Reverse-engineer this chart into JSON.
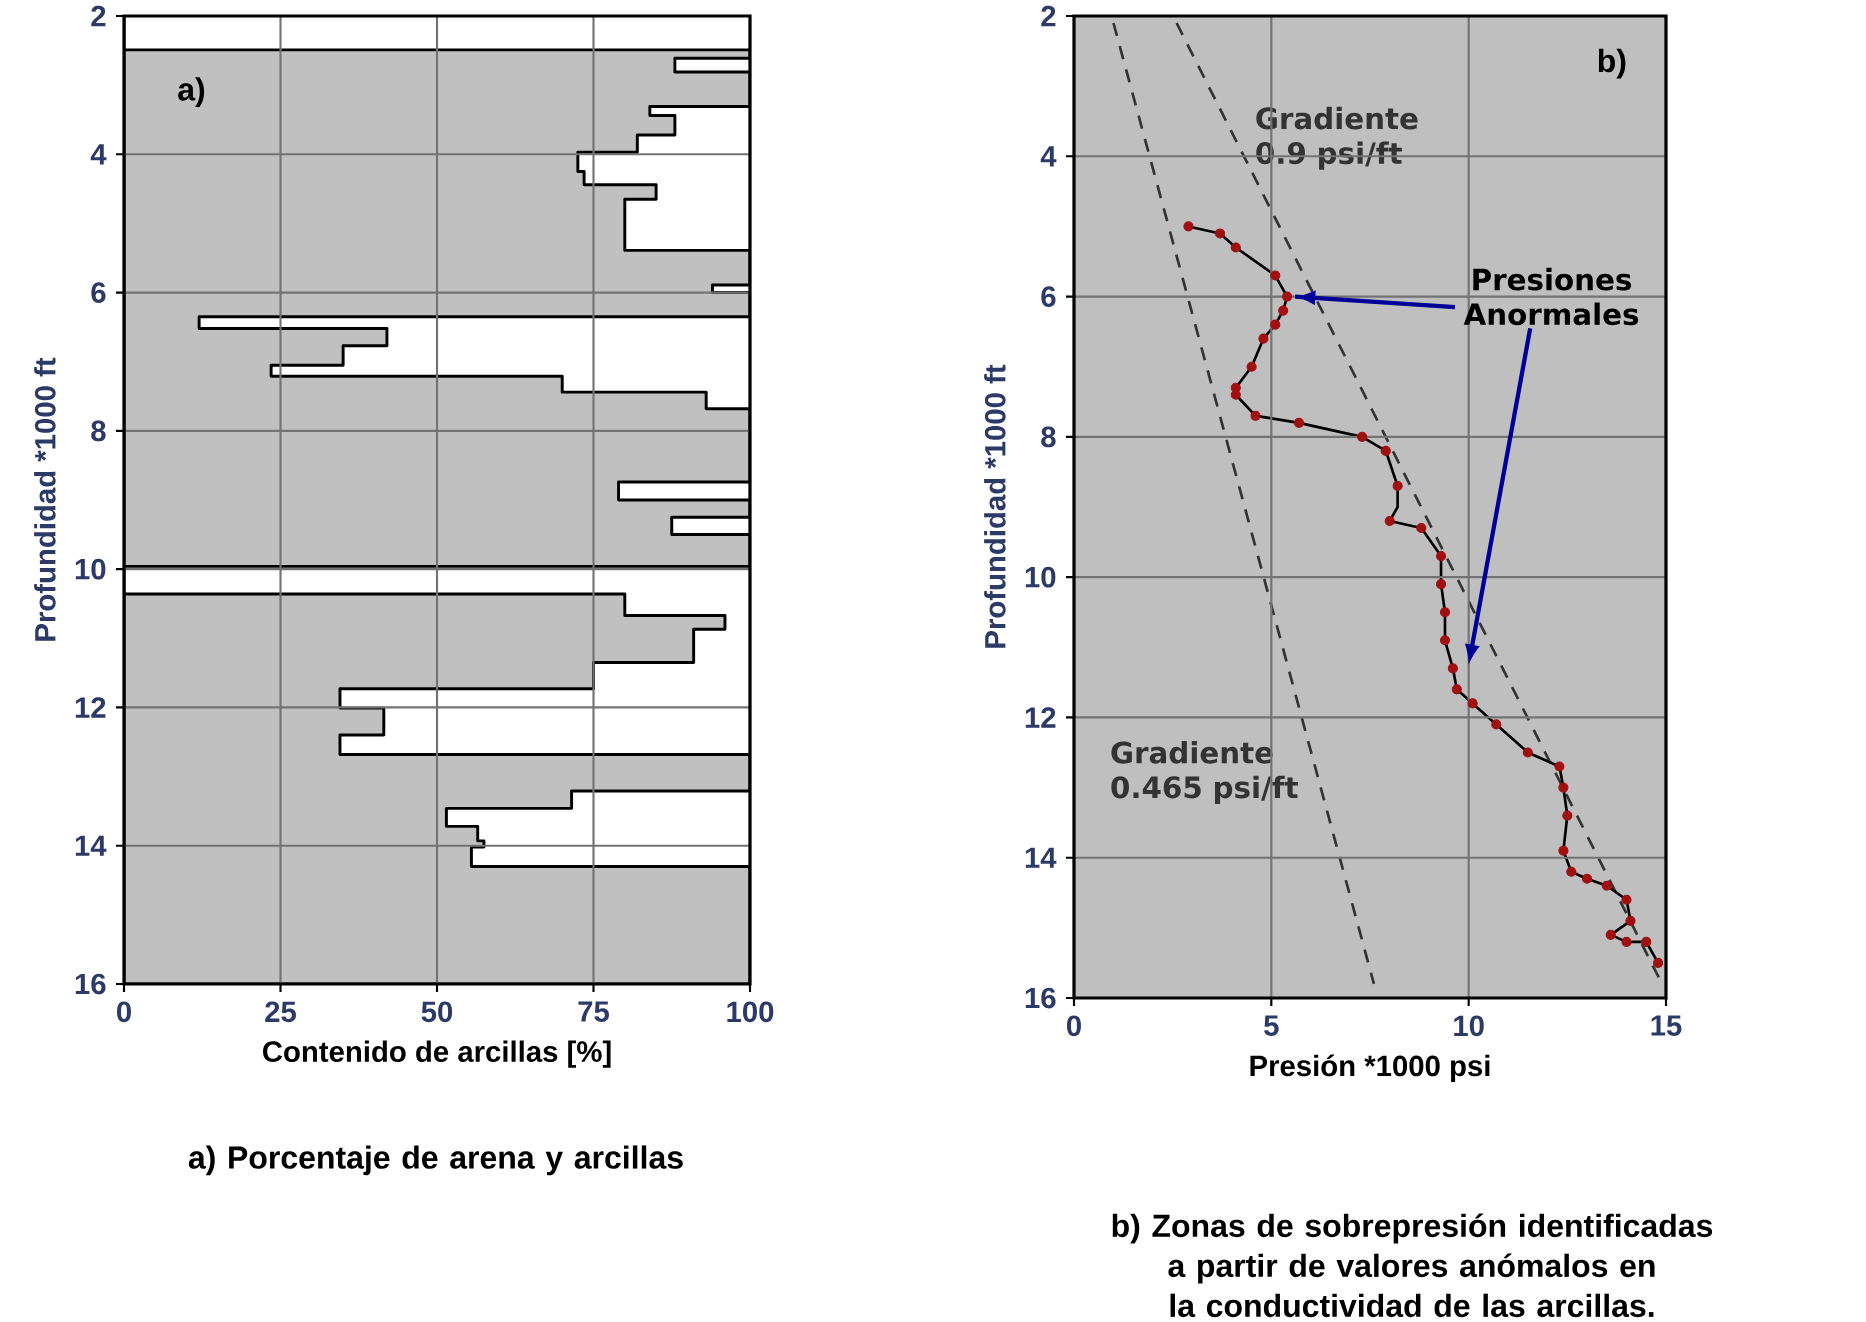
{
  "chart_data": [
    {
      "type": "area",
      "orientation": "horizontal",
      "title": "a)",
      "xlabel": "Contenido de arcillas [%]",
      "ylabel": "Profundidad *1000 ft",
      "xlim": [
        0,
        100
      ],
      "ylim": [
        16,
        2
      ],
      "xticks": [
        0,
        25,
        50,
        75,
        100
      ],
      "yticks": [
        2,
        4,
        6,
        8,
        10,
        12,
        14,
        16
      ],
      "grid": true,
      "series": [
        {
          "color": "#c0c0c0",
          "x": [
            2.0,
            2.49,
            2.49,
            2.61,
            2.61,
            2.81,
            2.81,
            3.31,
            3.31,
            3.44,
            3.44,
            3.72,
            3.72,
            3.97,
            3.97,
            4.25,
            4.25,
            4.44,
            4.44,
            4.65,
            4.65,
            5.39,
            5.39,
            5.89,
            5.89,
            6.0,
            6.0,
            6.35,
            6.35,
            6.52,
            6.52,
            6.77,
            6.77,
            7.05,
            7.05,
            7.21,
            7.21,
            7.44,
            7.44,
            7.68,
            7.68,
            8.74,
            8.74,
            9.0,
            9.0,
            9.25,
            9.25,
            9.5,
            9.5,
            9.96,
            9.96,
            10.36,
            10.36,
            10.67,
            10.67,
            10.87,
            10.87,
            11.35,
            11.35,
            11.73,
            11.73,
            12.01,
            12.01,
            12.4,
            12.4,
            12.68,
            12.68,
            13.21,
            13.21,
            13.46,
            13.46,
            13.72,
            13.72,
            13.93,
            13.93,
            14.02,
            14.02,
            14.3,
            14.3,
            16.0
          ],
          "values": [
            0,
            0,
            100,
            100,
            88,
            88,
            100,
            100,
            84,
            84,
            88,
            88,
            82,
            82,
            72.5,
            72.5,
            73.5,
            73.5,
            85,
            85,
            80,
            80,
            100,
            100,
            94,
            94,
            100,
            100,
            12,
            12,
            42,
            42,
            35,
            35,
            23.5,
            23.5,
            70,
            70,
            93,
            93,
            100,
            100,
            79,
            79,
            100,
            100,
            87.5,
            87.5,
            100,
            100,
            0,
            0,
            80,
            80,
            96,
            96,
            91,
            91,
            75,
            75,
            34.5,
            34.5,
            41.5,
            41.5,
            34.5,
            34.5,
            100,
            100,
            71.5,
            71.5,
            51.5,
            51.5,
            56.5,
            56.5,
            57.5,
            57.5,
            55.5,
            55.5,
            100,
            100
          ]
        }
      ],
      "annotations": [
        "a)  Porcentaje de arena y arcillas"
      ]
    },
    {
      "type": "line",
      "title": "b)",
      "xlabel": "Presión *1000 psi",
      "ylabel": "Profundidad *1000 ft",
      "xlim": [
        0,
        15
      ],
      "ylim": [
        16,
        2
      ],
      "xticks": [
        0,
        5,
        10,
        15
      ],
      "yticks": [
        2,
        4,
        6,
        8,
        10,
        12,
        14,
        16
      ],
      "grid": true,
      "series": [
        {
          "name": "Gradiente 0.9 psi/ft",
          "color": "#333333",
          "line_style": "dashed",
          "x": [
            2.6,
            14.9
          ],
          "values": [
            2.1,
            15.8
          ]
        },
        {
          "name": "Gradiente 0.465 psi/ft",
          "color": "#333333",
          "line_style": "dashed",
          "x": [
            1.0,
            7.6
          ],
          "values": [
            2.1,
            15.8
          ]
        },
        {
          "color": "#000000",
          "line_style": "solid",
          "x": [
            2.9,
            3.7,
            4.1,
            5.1,
            5.4,
            5.3,
            5.1,
            4.8,
            4.5,
            4.1,
            4.1,
            4.6,
            5.7,
            7.3,
            7.9,
            8.2,
            8.2,
            8.2,
            8.0,
            8.8,
            9.3,
            9.3,
            9.4,
            9.4,
            9.6,
            9.7,
            10.1,
            10.7,
            11.5,
            12.3,
            12.4,
            12.5,
            12.4,
            12.6,
            13.0,
            13.5,
            14.0,
            14.1,
            13.6,
            14.0,
            14.5,
            14.8
          ],
          "values": [
            5.0,
            5.1,
            5.3,
            5.7,
            6.0,
            6.2,
            6.4,
            6.6,
            7.0,
            7.3,
            7.4,
            7.7,
            7.8,
            8.0,
            8.2,
            8.7,
            9.0,
            9.0,
            9.2,
            9.3,
            9.7,
            10.1,
            10.5,
            10.9,
            11.3,
            11.6,
            11.8,
            12.1,
            12.5,
            12.7,
            13.0,
            13.4,
            13.9,
            14.2,
            14.3,
            14.4,
            14.6,
            14.9,
            15.1,
            15.2,
            15.2,
            15.5
          ]
        },
        {
          "type": "scatter",
          "color": "#a01010",
          "marker": "circle",
          "x": [
            2.9,
            3.7,
            4.1,
            5.1,
            5.4,
            5.3,
            5.1,
            4.8,
            4.5,
            4.1,
            4.1,
            4.6,
            5.7,
            7.3,
            7.9,
            8.2,
            8.0,
            8.8,
            9.3,
            9.3,
            9.4,
            9.4,
            9.6,
            9.7,
            10.1,
            10.7,
            11.5,
            12.3,
            12.4,
            12.5,
            12.4,
            12.6,
            13.0,
            13.5,
            14.0,
            14.1,
            13.6,
            14.0,
            14.5,
            14.8
          ],
          "values": [
            5.0,
            5.1,
            5.3,
            5.7,
            6.0,
            6.2,
            6.4,
            6.6,
            7.0,
            7.3,
            7.4,
            7.7,
            7.8,
            8.0,
            8.2,
            8.7,
            9.2,
            9.3,
            9.7,
            10.1,
            10.5,
            10.9,
            11.3,
            11.6,
            11.8,
            12.1,
            12.5,
            12.7,
            13.0,
            13.4,
            13.9,
            14.2,
            14.3,
            14.4,
            14.6,
            14.9,
            15.1,
            15.2,
            15.2,
            15.5
          ]
        }
      ],
      "annotations": [
        {
          "text": "Presiones Anormales",
          "x": 5.6,
          "y": 6.0
        },
        "b)  Zonas de sobrepresión  identificadas a partir de valores anómalos en la conductividad de las arcillas."
      ]
    }
  ]
}
